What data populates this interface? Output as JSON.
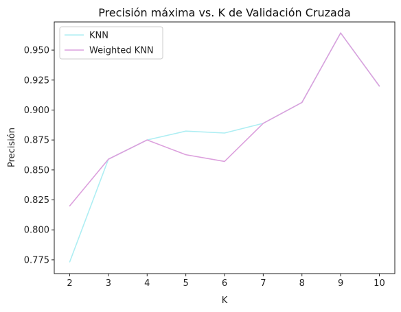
{
  "chart_data": {
    "type": "line",
    "title": "Precisión máxima vs. K de Validación Cruzada",
    "xlabel": "K",
    "ylabel": "Precisión",
    "x": [
      2,
      3,
      4,
      5,
      6,
      7,
      8,
      9,
      10
    ],
    "xlim": [
      1.6,
      10.4
    ],
    "ylim": [
      0.7635,
      0.9735
    ],
    "yticks": [
      0.775,
      0.8,
      0.825,
      0.85,
      0.875,
      0.9,
      0.925,
      0.95
    ],
    "ytick_labels": [
      "0.775",
      "0.800",
      "0.825",
      "0.850",
      "0.875",
      "0.900",
      "0.925",
      "0.950"
    ],
    "xtick_labels": [
      "2",
      "3",
      "4",
      "5",
      "6",
      "7",
      "8",
      "9",
      "10"
    ],
    "grid": false,
    "legend_position": "top-left",
    "series": [
      {
        "name": "KNN",
        "color": "#aeeef3",
        "values": [
          0.7733,
          0.859,
          0.875,
          0.8824,
          0.8808,
          0.8889,
          0.9063,
          0.9643,
          0.92
        ]
      },
      {
        "name": "Weighted KNN",
        "color": "#dca0dd",
        "values": [
          0.82,
          0.859,
          0.875,
          0.8627,
          0.8571,
          0.8889,
          0.9063,
          0.9643,
          0.92
        ]
      }
    ]
  }
}
